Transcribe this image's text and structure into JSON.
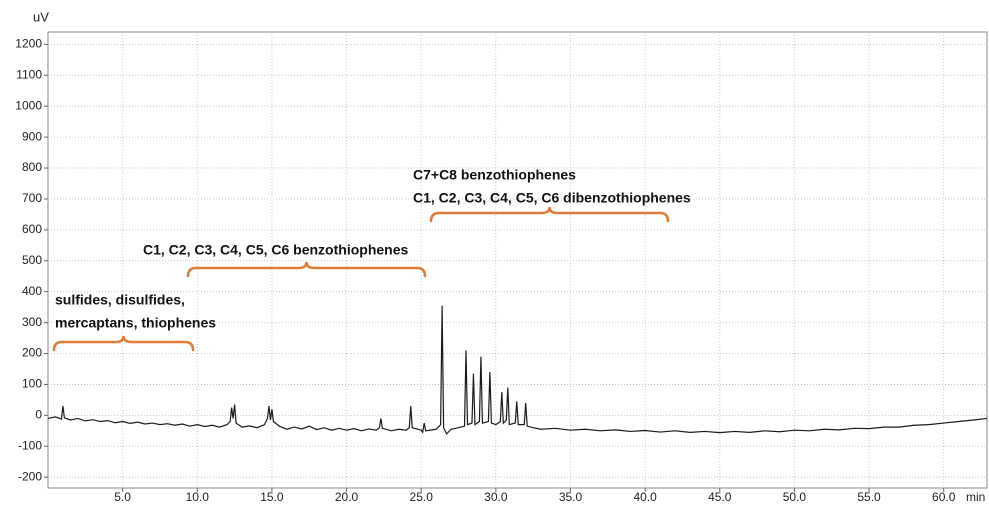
{
  "chart_data": {
    "type": "line",
    "y_unit": "uV",
    "x_unit": "min",
    "xlim": [
      0,
      62.9
    ],
    "ylim": [
      -235,
      1240
    ],
    "xticks": [
      {
        "value": 5,
        "label": "5.0"
      },
      {
        "value": 10,
        "label": "10.0"
      },
      {
        "value": 15,
        "label": "15.0"
      },
      {
        "value": 20,
        "label": "20.0"
      },
      {
        "value": 25,
        "label": "25.0"
      },
      {
        "value": 30,
        "label": "30.0"
      },
      {
        "value": 35,
        "label": "35.0"
      },
      {
        "value": 40,
        "label": "40.0"
      },
      {
        "value": 45,
        "label": "45.0"
      },
      {
        "value": 50,
        "label": "50.0"
      },
      {
        "value": 55,
        "label": "55.0"
      },
      {
        "value": 60,
        "label": "60.0"
      }
    ],
    "yticks": [
      -200,
      -100,
      0,
      100,
      200,
      300,
      400,
      500,
      600,
      700,
      800,
      900,
      1000,
      1100,
      1200
    ],
    "grid": true,
    "x": [
      0,
      0.5,
      0.9,
      1.0,
      1.1,
      1.5,
      2,
      2.5,
      3,
      3.5,
      4,
      4.5,
      5,
      5.5,
      6,
      6.5,
      7,
      7.5,
      8,
      8.5,
      9,
      9.5,
      10,
      10.5,
      11,
      11.5,
      12,
      12.2,
      12.3,
      12.4,
      12.5,
      12.6,
      13,
      13.5,
      14,
      14.5,
      14.7,
      14.8,
      14.9,
      15.0,
      15.1,
      15.5,
      16,
      16.5,
      17,
      17.5,
      18,
      18.5,
      19,
      19.5,
      20,
      20.5,
      21,
      21.5,
      22,
      22.2,
      22.3,
      22.4,
      23,
      23.5,
      24,
      24.2,
      24.3,
      24.4,
      25,
      25.1,
      25.2,
      25.3,
      26,
      26.3,
      26.4,
      26.5,
      26.7,
      27,
      27.5,
      27.9,
      28.0,
      28.1,
      28.4,
      28.5,
      28.6,
      28.9,
      29.0,
      29.1,
      29.5,
      29.6,
      29.7,
      30.0,
      30.3,
      30.4,
      30.5,
      30.7,
      30.8,
      30.9,
      31.3,
      31.4,
      31.5,
      31.9,
      32.0,
      32.1,
      32.5,
      33,
      34,
      35,
      36,
      37,
      38,
      39,
      40,
      41,
      42,
      43,
      44,
      45,
      46,
      47,
      48,
      49,
      50,
      51,
      52,
      53,
      54,
      55,
      56,
      57,
      58,
      59,
      60,
      61,
      62,
      62.9
    ],
    "series": [
      {
        "color": "#1a1a1a",
        "values": [
          -10,
          -5,
          -12,
          30,
          -8,
          -15,
          -10,
          -18,
          -14,
          -20,
          -17,
          -24,
          -20,
          -26,
          -22,
          -28,
          -25,
          -30,
          -27,
          -32,
          -28,
          -35,
          -30,
          -36,
          -32,
          -38,
          -30,
          -20,
          25,
          -10,
          35,
          -25,
          -38,
          -34,
          -40,
          -30,
          -10,
          30,
          -15,
          20,
          -20,
          -35,
          -45,
          -38,
          -44,
          -35,
          -46,
          -40,
          -48,
          -42,
          -48,
          -43,
          -50,
          -44,
          -48,
          -40,
          -10,
          -42,
          -50,
          -45,
          -48,
          -40,
          30,
          -40,
          -48,
          -55,
          -25,
          -50,
          -45,
          -30,
          355,
          -40,
          -60,
          -45,
          -40,
          -35,
          210,
          -30,
          -25,
          135,
          -30,
          -20,
          190,
          -25,
          -20,
          140,
          -25,
          -30,
          -20,
          75,
          -25,
          -15,
          90,
          -30,
          -25,
          45,
          -30,
          -30,
          40,
          -35,
          -40,
          -45,
          -42,
          -48,
          -45,
          -50,
          -47,
          -52,
          -49,
          -54,
          -50,
          -55,
          -52,
          -56,
          -52,
          -55,
          -50,
          -53,
          -48,
          -50,
          -45,
          -47,
          -42,
          -43,
          -38,
          -38,
          -32,
          -30,
          -25,
          -20,
          -15,
          -10
        ]
      }
    ],
    "annotation_color": "#e07b39",
    "annotations": [
      {
        "lines": [
          "sulfides, disulfides,",
          "mercaptans, thiophenes"
        ]
      },
      {
        "lines": [
          "C1, C2, C3, C4, C5, C6 benzothiophenes"
        ]
      },
      {
        "lines": [
          "C7+C8 benzothiophenes",
          "C1, C2, C3, C4, C5, C6 dibenzothiophenes"
        ]
      }
    ]
  }
}
